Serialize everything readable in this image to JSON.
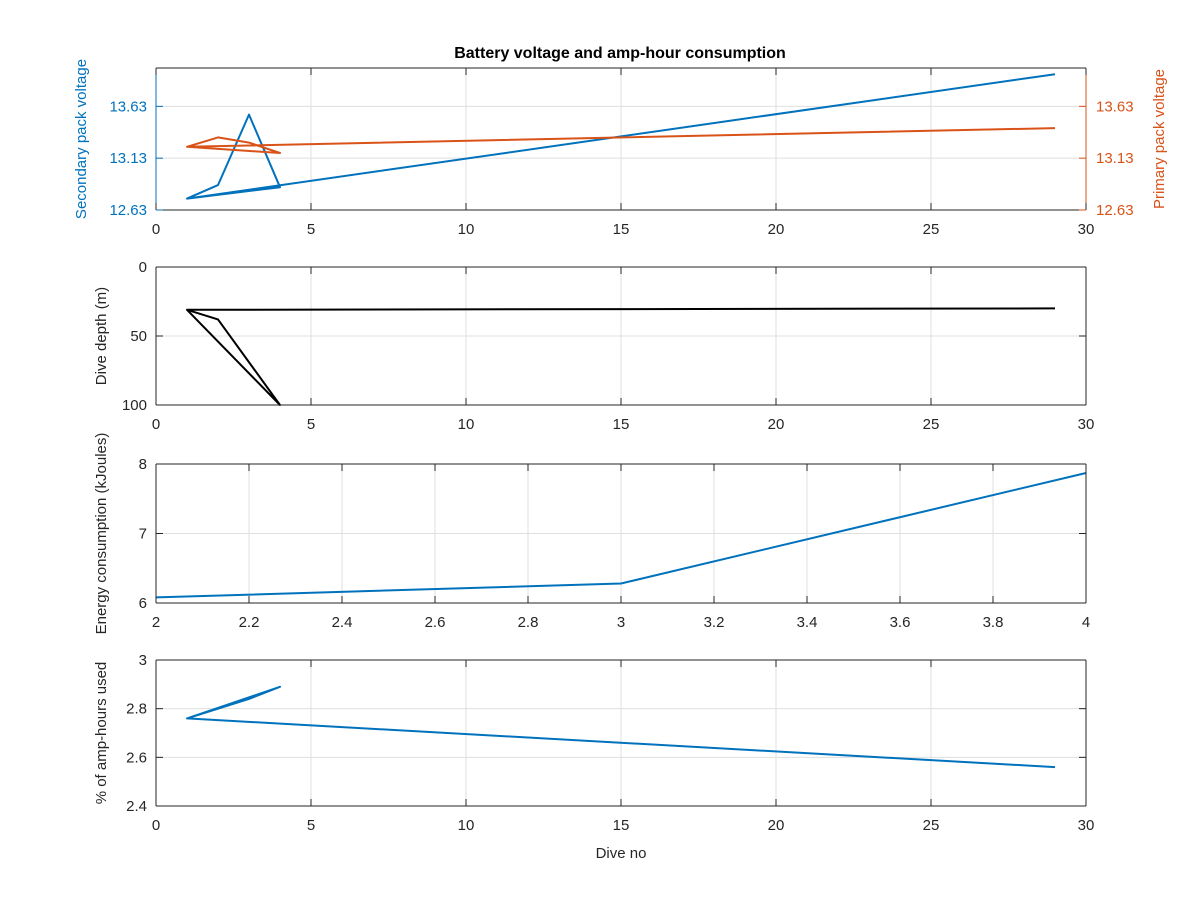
{
  "figure": {
    "title": "Battery voltage and amp-hour consumption",
    "background": "#ffffff"
  },
  "colors": {
    "blue": "#0072bd",
    "orange": "#d95319",
    "black": "#000000",
    "axis": "#262626",
    "grid": "#dfdfdf"
  },
  "chart_data": [
    {
      "type": "line",
      "title": "Battery voltage and amp-hour consumption",
      "xlabel": "",
      "ylabel": "Secondary pack voltage",
      "ylabel_right": "Primary pack voltage",
      "xlim": [
        0,
        30
      ],
      "ylim": [
        12.63,
        14.0
      ],
      "ylim_right": [
        12.63,
        14.0
      ],
      "xticks": [
        0,
        5,
        10,
        15,
        20,
        25,
        30
      ],
      "xtick_labels": [
        "0",
        "5",
        "10",
        "15",
        "20",
        "25",
        "30"
      ],
      "yticks": [
        12.63,
        13.13,
        13.63
      ],
      "ytick_labels": [
        "12.63",
        "13.13",
        "13.63"
      ],
      "yticks_right": [
        12.63,
        13.13,
        13.63
      ],
      "ytick_labels_right": [
        "12.63",
        "13.13",
        "13.63"
      ],
      "grid": true,
      "series": [
        {
          "axis": "left",
          "color": "blue",
          "x": [
            1,
            2,
            3,
            4,
            1,
            29
          ],
          "y": [
            12.74,
            12.87,
            13.55,
            12.85,
            12.74,
            13.94
          ]
        },
        {
          "axis": "right",
          "color": "orange",
          "x": [
            1,
            2,
            3,
            4,
            1,
            29
          ],
          "y": [
            13.24,
            13.33,
            13.28,
            13.18,
            13.24,
            13.42
          ]
        }
      ]
    },
    {
      "type": "line",
      "title": "",
      "xlabel": "",
      "ylabel": "Dive depth (m)",
      "xlim": [
        0,
        30
      ],
      "ylim": [
        0,
        100
      ],
      "y_reversed": true,
      "xticks": [
        0,
        5,
        10,
        15,
        20,
        25,
        30
      ],
      "xtick_labels": [
        "0",
        "5",
        "10",
        "15",
        "20",
        "25",
        "30"
      ],
      "yticks": [
        0,
        50,
        100
      ],
      "ytick_labels": [
        "0",
        "50",
        "100"
      ],
      "grid": true,
      "series": [
        {
          "color": "black",
          "x": [
            1,
            2,
            4,
            1,
            29
          ],
          "y": [
            31,
            38,
            100,
            31,
            30
          ]
        }
      ]
    },
    {
      "type": "line",
      "title": "",
      "xlabel": "",
      "ylabel": "Energy consumption (kJoules)",
      "xlim": [
        2,
        4
      ],
      "ylim": [
        6,
        8
      ],
      "xticks": [
        2,
        2.2,
        2.4,
        2.6,
        2.8,
        3,
        3.2,
        3.4,
        3.6,
        3.8,
        4
      ],
      "xtick_labels": [
        "2",
        "2.2",
        "2.4",
        "2.6",
        "2.8",
        "3",
        "3.2",
        "3.4",
        "3.6",
        "3.8",
        "4"
      ],
      "yticks": [
        6,
        7,
        8
      ],
      "ytick_labels": [
        "6",
        "7",
        "8"
      ],
      "grid": true,
      "series": [
        {
          "color": "blue",
          "x": [
            2,
            3,
            4
          ],
          "y": [
            6.08,
            6.28,
            7.87
          ]
        }
      ]
    },
    {
      "type": "line",
      "title": "",
      "xlabel": "Dive no",
      "ylabel": "% of amp-hours used",
      "xlim": [
        0,
        30
      ],
      "ylim": [
        2.4,
        3.0
      ],
      "xticks": [
        0,
        5,
        10,
        15,
        20,
        25,
        30
      ],
      "xtick_labels": [
        "0",
        "5",
        "10",
        "15",
        "20",
        "25",
        "30"
      ],
      "yticks": [
        2.4,
        2.6,
        2.8,
        3.0
      ],
      "ytick_labels": [
        "2.4",
        "2.6",
        "2.8",
        "3"
      ],
      "grid": true,
      "series": [
        {
          "color": "blue",
          "x": [
            1,
            2,
            3,
            4,
            1,
            29
          ],
          "y": [
            2.76,
            2.8,
            2.84,
            2.89,
            2.76,
            2.56
          ]
        }
      ]
    }
  ]
}
